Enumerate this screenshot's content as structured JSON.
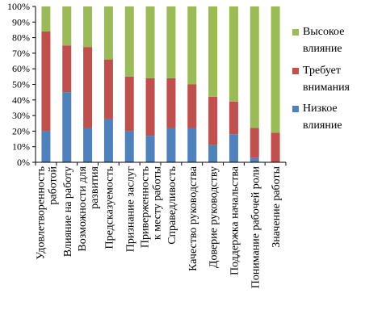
{
  "chart_data": {
    "type": "bar",
    "stacked": true,
    "percent_stacked": true,
    "title": "",
    "xlabel": "",
    "ylabel": "",
    "ylim": [
      0,
      100
    ],
    "y_ticks": [
      "0%",
      "10%",
      "20%",
      "30%",
      "40%",
      "50%",
      "60%",
      "70%",
      "80%",
      "90%",
      "100%"
    ],
    "grid": false,
    "legend_position": "right",
    "categories": [
      [
        "Удовлетворенность",
        "работой"
      ],
      [
        "Влияние на работу"
      ],
      [
        "Возможности для",
        "развития"
      ],
      [
        "Предсказуемость"
      ],
      [
        "Признание заслуг"
      ],
      [
        "Приверженность",
        "к месту работы"
      ],
      [
        "Справедливость"
      ],
      [
        "Качество руководства"
      ],
      [
        "Доверие руководству"
      ],
      [
        "Поддержка начальства"
      ],
      [
        "Понимание рабочей роли"
      ],
      [
        "Значение работы"
      ]
    ],
    "series": [
      {
        "name": "Низкое влияние",
        "color": "#4f81bd",
        "values": [
          20,
          45,
          22,
          28,
          20,
          17,
          22,
          22,
          11,
          18,
          3,
          0
        ]
      },
      {
        "name": "Требует внимания",
        "color": "#c0504d",
        "values": [
          64,
          30,
          52,
          38,
          35,
          37,
          32,
          28,
          31,
          21,
          19,
          19
        ]
      },
      {
        "name": "Высокое влияние",
        "color": "#9bbb59",
        "values": [
          16,
          25,
          26,
          34,
          45,
          46,
          46,
          50,
          58,
          61,
          78,
          81
        ]
      }
    ],
    "legend": [
      {
        "label_lines": [
          "Высокое",
          "влияние"
        ],
        "color": "#9bbb59"
      },
      {
        "label_lines": [
          "Требует",
          "внимания"
        ],
        "color": "#c0504d"
      },
      {
        "label_lines": [
          "Низкое",
          "влияние"
        ],
        "color": "#4f81bd"
      }
    ]
  }
}
